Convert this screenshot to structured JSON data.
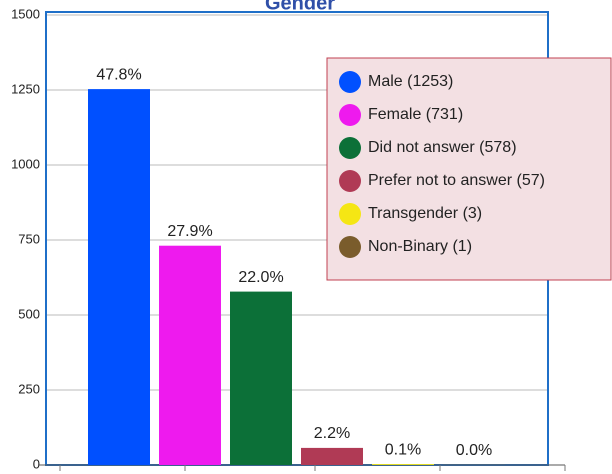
{
  "chart_data": {
    "type": "bar",
    "title": "Gender",
    "categories": [
      "Male (1253)",
      "Female (731)",
      "Did not answer (578)",
      "Prefer not to answer (57)",
      "Transgender (3)",
      "Non-Binary (1)"
    ],
    "values": [
      1253,
      731,
      578,
      57,
      3,
      1
    ],
    "value_labels": [
      "47.8%",
      "27.9%",
      "22.0%",
      "2.2%",
      "0.1%",
      "0.0%"
    ],
    "colors": [
      "#0050ff",
      "#ee1aee",
      "#0c7038",
      "#b03a55",
      "#f5e614",
      "#7a5c2c"
    ],
    "ylim": [
      0,
      1500
    ],
    "yticks": [
      0,
      250,
      500,
      750,
      1000,
      1250,
      1500
    ],
    "grid": true
  }
}
